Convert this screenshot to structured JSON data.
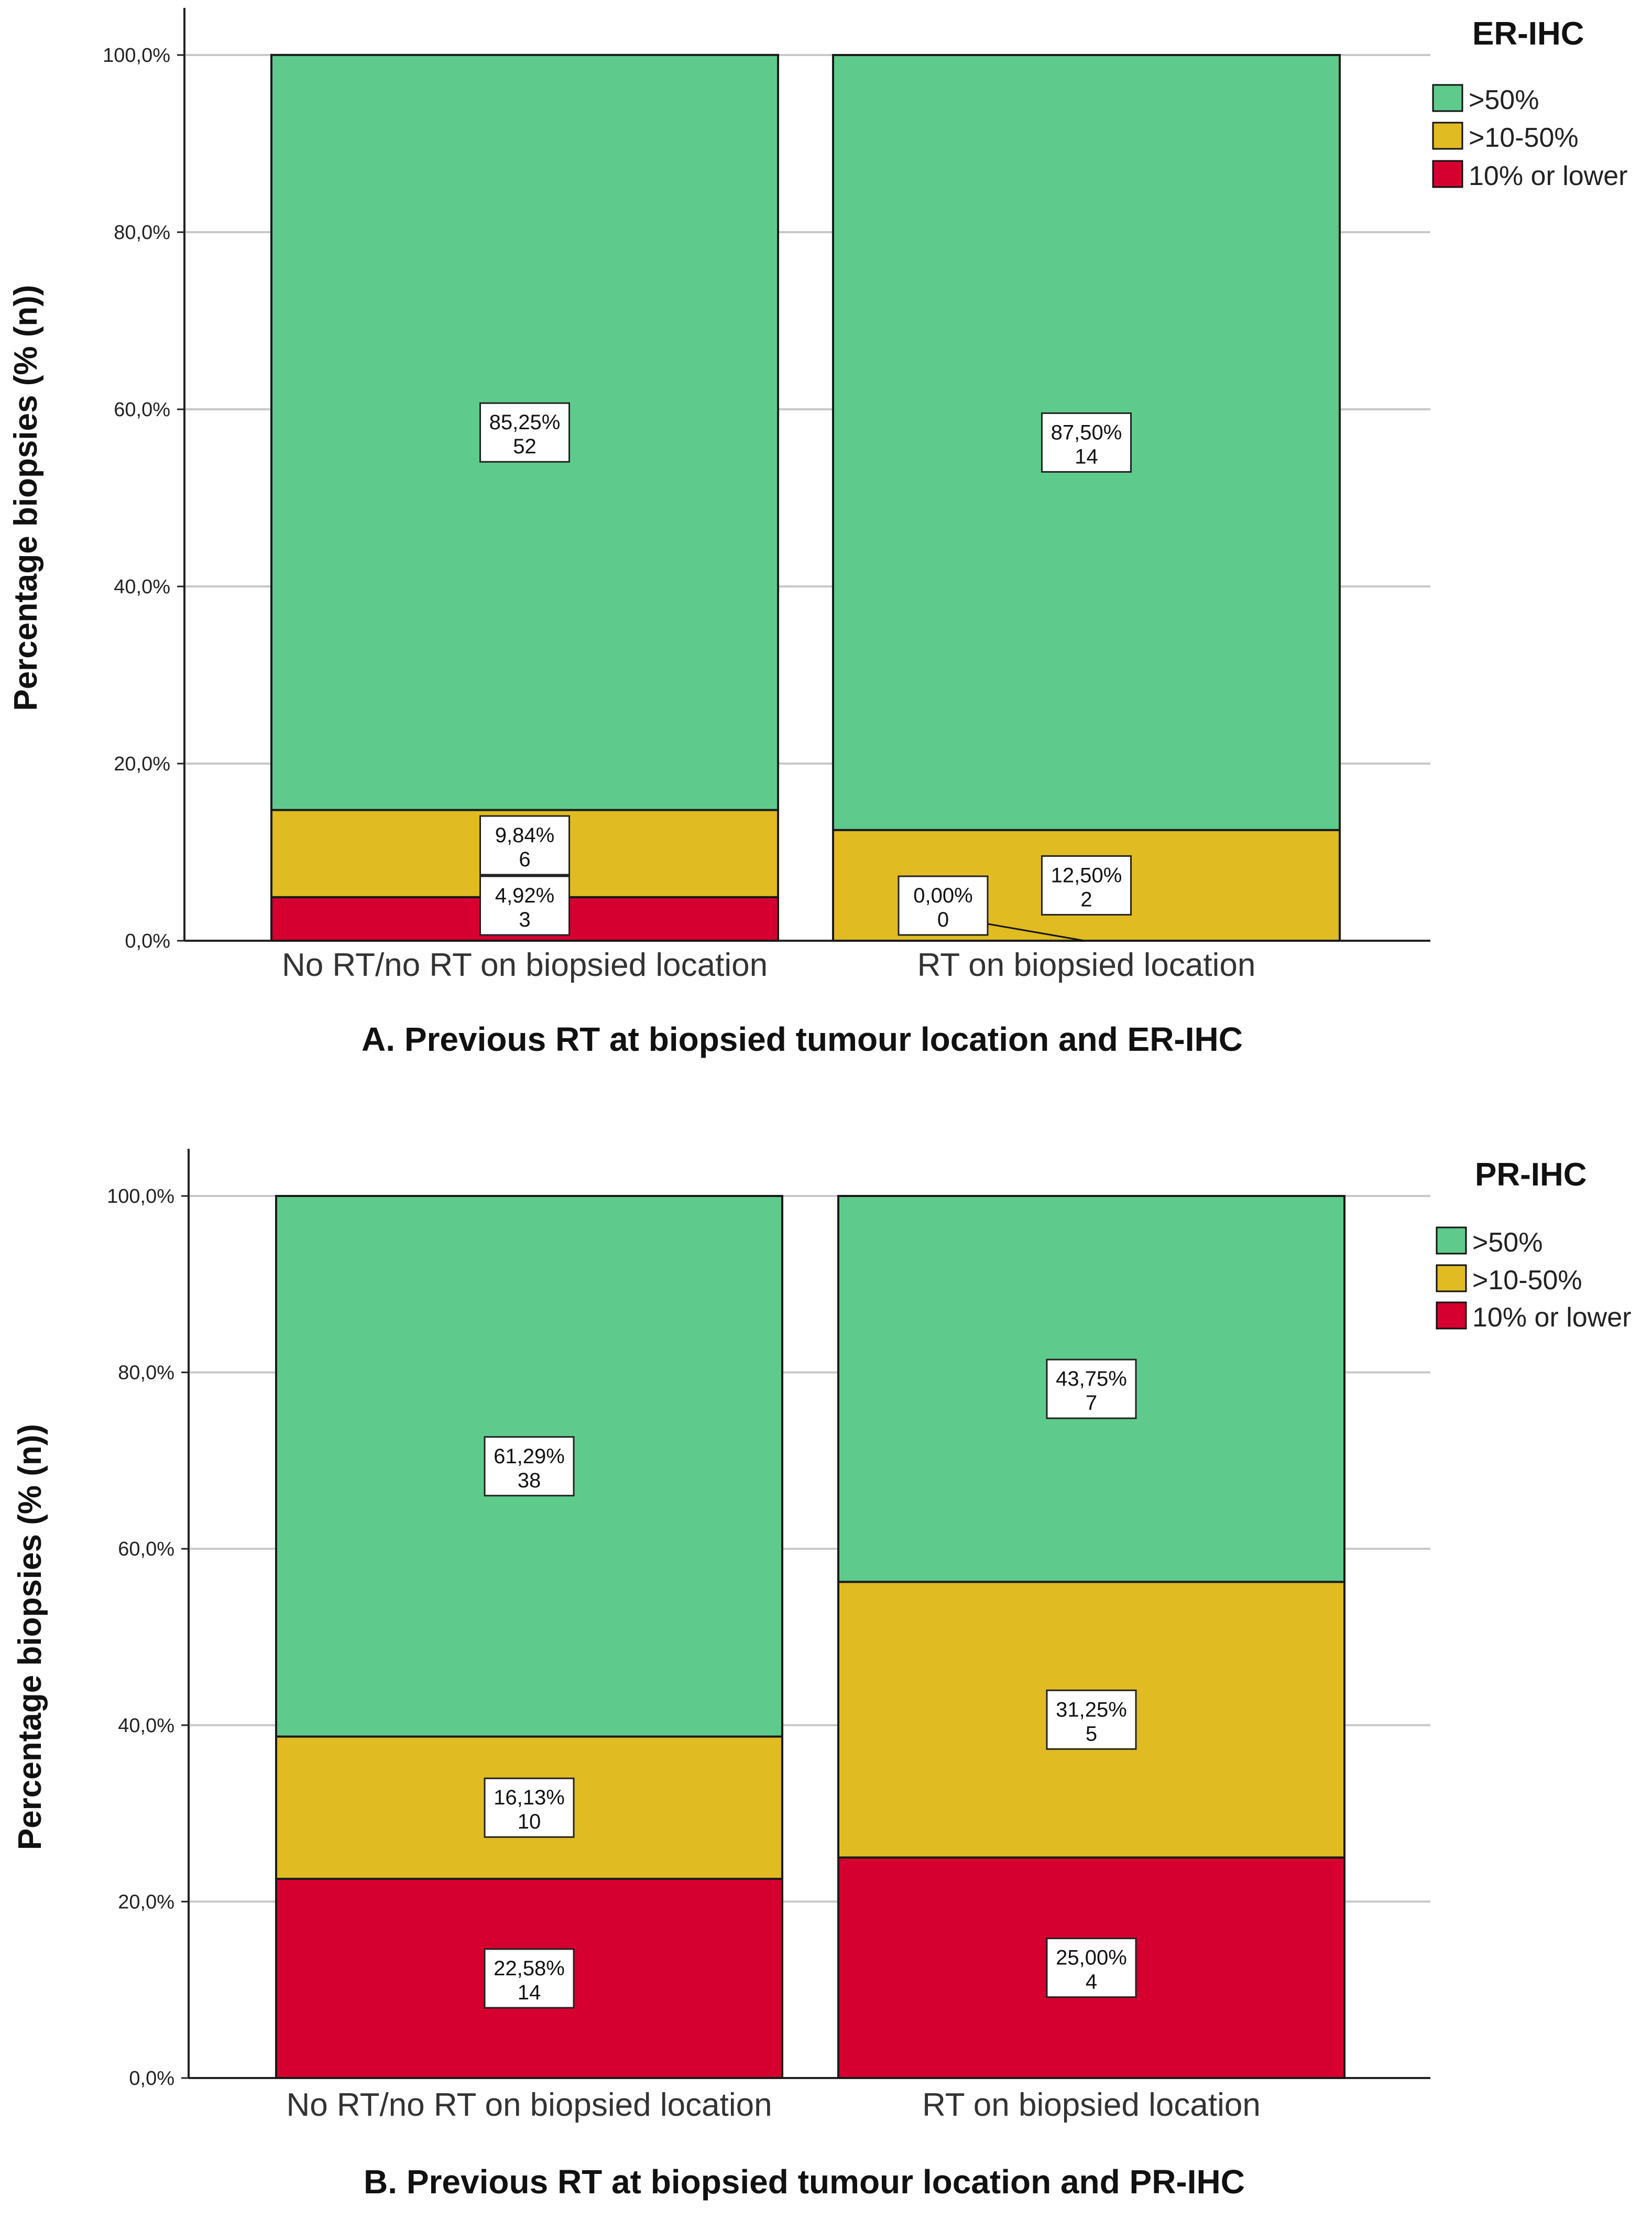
{
  "colors": {
    ">50%": "#5ecb8c",
    ">10-50%": "#e0bb22",
    "10% or lower": "#d5002f",
    "grid": "#c8c8c8",
    "axis": "#222222",
    "label_box_fill": "#ffffff",
    "label_box_border": "#222222"
  },
  "chart_data": [
    {
      "id": "A",
      "type": "bar",
      "stacked": true,
      "title": "A. Previous RT at biopsied tumour location and ER-IHC",
      "xlabel": "",
      "ylabel": "Percentage biopsies (% (n))",
      "ylim": [
        0,
        100
      ],
      "yticks": [
        "0,0%",
        "20,0%",
        "40,0%",
        "60,0%",
        "80,0%",
        "100,0%"
      ],
      "grid": true,
      "legend": {
        "title": "ER-IHC",
        "position": "top-right",
        "entries": [
          ">50%",
          ">10-50%",
          "10% or lower"
        ]
      },
      "categories": [
        "No RT/no RT on biopsied location",
        "RT on biopsied location"
      ],
      "series": [
        {
          "name": "10% or lower",
          "values": [
            4.92,
            0.0
          ],
          "labels": [
            [
              "4,92%",
              "3"
            ],
            [
              "0,00%",
              "0"
            ]
          ]
        },
        {
          "name": ">10-50%",
          "values": [
            9.84,
            12.5
          ],
          "labels": [
            [
              "9,84%",
              "6"
            ],
            [
              "12,50%",
              "2"
            ]
          ]
        },
        {
          "name": ">50%",
          "values": [
            85.25,
            87.5
          ],
          "labels": [
            [
              "85,25%",
              "52"
            ],
            [
              "87,50%",
              "14"
            ]
          ]
        }
      ]
    },
    {
      "id": "B",
      "type": "bar",
      "stacked": true,
      "title": "B. Previous RT at biopsied tumour location and PR-IHC",
      "xlabel": "",
      "ylabel": "Percentage biopsies (% (n))",
      "ylim": [
        0,
        100
      ],
      "yticks": [
        "0,0%",
        "20,0%",
        "40,0%",
        "60,0%",
        "80,0%",
        "100,0%"
      ],
      "grid": true,
      "legend": {
        "title": "PR-IHC",
        "position": "top-right",
        "entries": [
          ">50%",
          ">10-50%",
          "10% or lower"
        ]
      },
      "categories": [
        "No RT/no RT on biopsied location",
        "RT on biopsied location"
      ],
      "series": [
        {
          "name": "10% or lower",
          "values": [
            22.58,
            25.0
          ],
          "labels": [
            [
              "22,58%",
              "14"
            ],
            [
              "25,00%",
              "4"
            ]
          ]
        },
        {
          "name": ">10-50%",
          "values": [
            16.13,
            31.25
          ],
          "labels": [
            [
              "16,13%",
              "10"
            ],
            [
              "31,25%",
              "5"
            ]
          ]
        },
        {
          "name": ">50%",
          "values": [
            61.29,
            43.75
          ],
          "labels": [
            [
              "61,29%",
              "38"
            ],
            [
              "43,75%",
              "7"
            ]
          ]
        }
      ]
    }
  ]
}
